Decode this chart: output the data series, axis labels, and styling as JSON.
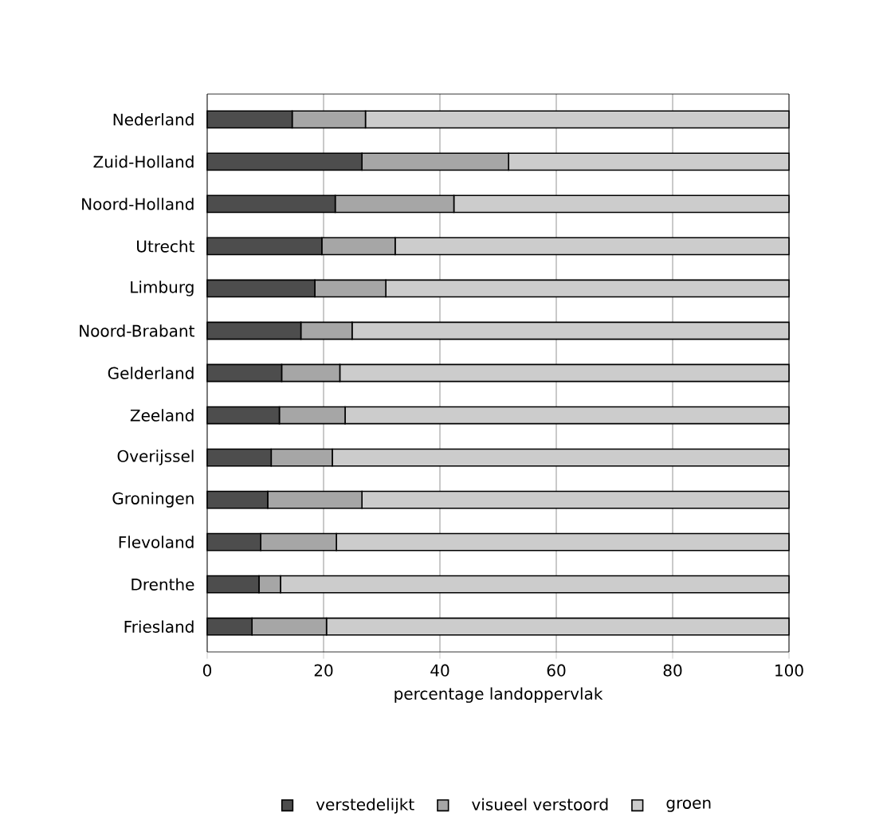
{
  "chart_data": {
    "type": "bar",
    "orientation": "horizontal",
    "stacked": true,
    "xlabel": "percentage landoppervlak",
    "categories": [
      "Nederland",
      "Zuid-Holland",
      "Noord-Holland",
      "Utrecht",
      "Limburg",
      "Noord-Brabant",
      "Gelderland",
      "Zeeland",
      "Overijssel",
      "Groningen",
      "Flevoland",
      "Drenthe",
      "Friesland"
    ],
    "series": [
      {
        "name": "verstedelijkt",
        "color": "#4d4d4d",
        "values": [
          14.6,
          26.6,
          22.0,
          19.7,
          18.5,
          16.1,
          12.8,
          12.4,
          11.0,
          10.4,
          9.2,
          8.9,
          7.7
        ]
      },
      {
        "name": "visueel verstoord",
        "color": "#a6a6a6",
        "values": [
          12.6,
          25.2,
          20.4,
          12.6,
          12.2,
          8.8,
          10.0,
          11.3,
          10.5,
          16.2,
          13.0,
          3.7,
          12.8
        ]
      },
      {
        "name": "groen",
        "color": "#cccccc",
        "values": [
          72.8,
          48.2,
          57.6,
          67.7,
          69.3,
          75.1,
          77.2,
          76.3,
          78.5,
          73.4,
          77.8,
          87.4,
          79.5
        ]
      }
    ],
    "xlim": [
      0,
      100
    ],
    "xticks": [
      0,
      20,
      40,
      60,
      80,
      100
    ],
    "grid": "x",
    "legend": "bottom"
  }
}
